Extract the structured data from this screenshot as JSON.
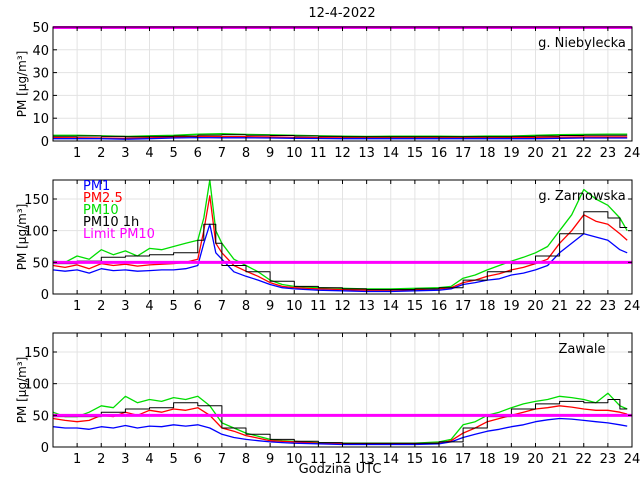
{
  "figure": {
    "title": "12-4-2022",
    "xlabel": "Godzina UTC"
  },
  "colors": {
    "pm1": "#0000ff",
    "pm25": "#ff0000",
    "pm10": "#00dd00",
    "pm10_1h": "#000000",
    "limit": "#ff00ff"
  },
  "chart_data": [
    {
      "type": "line",
      "station": "g. Niebylecka",
      "ylabel": "PM [µg/m³]",
      "xlabel": "",
      "xlim": [
        0,
        24
      ],
      "ylim": [
        0,
        50
      ],
      "xticks": [
        1,
        2,
        3,
        4,
        5,
        6,
        7,
        8,
        9,
        10,
        11,
        12,
        13,
        14,
        15,
        16,
        17,
        18,
        19,
        20,
        21,
        22,
        23,
        24
      ],
      "yticks": [
        0,
        10,
        20,
        30,
        40,
        50
      ],
      "grid": true,
      "x": [
        0,
        1,
        2,
        3,
        4,
        5,
        6,
        7,
        8,
        9,
        10,
        11,
        12,
        13,
        14,
        15,
        16,
        17,
        18,
        19,
        20,
        21,
        22,
        23,
        23.8
      ],
      "series": [
        {
          "name": "PM1",
          "key": "pm1",
          "values": [
            1,
            1,
            1,
            0.8,
            1,
            1.3,
            1.5,
            1.4,
            1.4,
            1.3,
            1.2,
            1.1,
            1,
            1,
            1,
            1,
            1,
            1,
            1,
            1,
            1,
            1.2,
            1.3,
            1.3,
            1.3
          ]
        },
        {
          "name": "PM2.5",
          "key": "pm25",
          "values": [
            1.5,
            1.4,
            1.3,
            1.2,
            1.4,
            1.7,
            2,
            1.9,
            1.9,
            1.8,
            1.6,
            1.5,
            1.4,
            1.4,
            1.4,
            1.4,
            1.4,
            1.4,
            1.4,
            1.5,
            1.6,
            1.7,
            1.8,
            1.8,
            1.8
          ]
        },
        {
          "name": "PM10",
          "key": "pm10",
          "values": [
            2.5,
            2.5,
            2.3,
            2,
            2.3,
            2.5,
            3,
            3.2,
            2.9,
            2.7,
            2.5,
            2.3,
            2.1,
            2,
            2.1,
            2.1,
            2.1,
            2,
            2.2,
            2.2,
            2.5,
            2.8,
            2.9,
            3,
            3
          ]
        },
        {
          "name": "PM10 1h",
          "key": "pm10_1h",
          "values": [
            2.1,
            2.2,
            2,
            1.9,
            2,
            2.2,
            2.6,
            2.7,
            2.5,
            2.4,
            2.2,
            2,
            1.9,
            1.9,
            1.9,
            1.9,
            1.9,
            1.9,
            1.9,
            2,
            2.2,
            2.4,
            2.5,
            2.5,
            2.5
          ]
        }
      ],
      "limit": {
        "name": "Limit PM10",
        "value": 50
      }
    },
    {
      "type": "line",
      "station": "g. Zarnowska",
      "ylabel": "PM [µg/m³]",
      "xlabel": "",
      "xlim": [
        0,
        24
      ],
      "ylim": [
        0,
        180
      ],
      "xticks": [
        1,
        2,
        3,
        4,
        5,
        6,
        7,
        8,
        9,
        10,
        11,
        12,
        13,
        14,
        15,
        16,
        17,
        18,
        19,
        20,
        21,
        22,
        23,
        24
      ],
      "yticks": [
        0,
        50,
        100,
        150
      ],
      "grid": true,
      "legend": "top-left",
      "x": [
        0,
        0.5,
        1,
        1.5,
        2,
        2.5,
        3,
        3.5,
        4,
        4.5,
        5,
        5.5,
        6,
        6.25,
        6.5,
        6.75,
        7,
        7.5,
        8,
        8.5,
        9,
        9.5,
        10,
        11,
        12,
        13,
        14,
        15,
        16,
        16.5,
        17,
        17.5,
        18,
        18.5,
        19,
        19.5,
        20,
        20.5,
        21,
        21.5,
        22,
        22.5,
        23,
        23.5,
        23.8
      ],
      "series": [
        {
          "name": "PM1",
          "key": "pm1",
          "values": [
            38,
            36,
            38,
            33,
            40,
            37,
            38,
            36,
            37,
            38,
            38,
            40,
            45,
            80,
            110,
            65,
            55,
            35,
            28,
            22,
            15,
            10,
            8,
            6,
            5,
            4,
            4,
            5,
            6,
            8,
            15,
            18,
            22,
            24,
            30,
            33,
            38,
            45,
            65,
            80,
            95,
            90,
            85,
            70,
            65
          ]
        },
        {
          "name": "PM2.5",
          "key": "pm25",
          "values": [
            45,
            42,
            46,
            40,
            48,
            45,
            47,
            44,
            46,
            47,
            48,
            50,
            55,
            100,
            155,
            80,
            65,
            45,
            36,
            28,
            18,
            12,
            10,
            8,
            7,
            6,
            6,
            7,
            8,
            10,
            18,
            22,
            28,
            32,
            38,
            42,
            48,
            55,
            80,
            100,
            125,
            115,
            110,
            95,
            85
          ]
        },
        {
          "name": "PM10",
          "key": "pm10",
          "values": [
            52,
            50,
            60,
            55,
            70,
            62,
            68,
            60,
            72,
            70,
            75,
            80,
            85,
            120,
            180,
            100,
            80,
            55,
            45,
            35,
            22,
            15,
            12,
            10,
            9,
            8,
            8,
            9,
            10,
            12,
            25,
            30,
            38,
            45,
            52,
            58,
            65,
            75,
            100,
            125,
            165,
            150,
            140,
            120,
            100
          ]
        },
        {
          "name": "PM10 1h",
          "key": "pm10_1h",
          "values": [
            48,
            48,
            52,
            52,
            58,
            58,
            60,
            60,
            62,
            62,
            65,
            65,
            85,
            110,
            110,
            80,
            45,
            45,
            35,
            35,
            20,
            20,
            12,
            10,
            8,
            7,
            7,
            8,
            10,
            10,
            22,
            22,
            35,
            35,
            48,
            48,
            60,
            60,
            95,
            95,
            130,
            130,
            120,
            105,
            105
          ]
        }
      ],
      "limit": {
        "name": "Limit PM10",
        "value": 50
      }
    },
    {
      "type": "line",
      "station": "Zawale",
      "ylabel": "PM [µg/m³]",
      "xlabel": "Godzina UTC",
      "xlim": [
        0,
        24
      ],
      "ylim": [
        0,
        180
      ],
      "xticks": [
        1,
        2,
        3,
        4,
        5,
        6,
        7,
        8,
        9,
        10,
        11,
        12,
        13,
        14,
        15,
        16,
        17,
        18,
        19,
        20,
        21,
        22,
        23,
        24
      ],
      "yticks": [
        0,
        50,
        100,
        150
      ],
      "grid": true,
      "x": [
        0,
        0.5,
        1,
        1.5,
        2,
        2.5,
        3,
        3.5,
        4,
        4.5,
        5,
        5.5,
        6,
        6.5,
        7,
        7.5,
        8,
        8.5,
        9,
        9.5,
        10,
        11,
        12,
        13,
        14,
        15,
        16,
        16.5,
        17,
        17.5,
        18,
        18.5,
        19,
        19.5,
        20,
        20.5,
        21,
        21.5,
        22,
        22.5,
        23,
        23.5,
        23.8
      ],
      "series": [
        {
          "name": "PM1",
          "key": "pm1",
          "values": [
            32,
            30,
            30,
            28,
            32,
            30,
            34,
            30,
            33,
            32,
            35,
            33,
            35,
            30,
            20,
            15,
            12,
            10,
            8,
            7,
            6,
            5,
            4,
            4,
            4,
            4,
            5,
            8,
            15,
            20,
            25,
            28,
            32,
            35,
            40,
            43,
            45,
            44,
            42,
            40,
            38,
            35,
            33
          ]
        },
        {
          "name": "PM2.5",
          "key": "pm25",
          "values": [
            45,
            42,
            40,
            42,
            50,
            48,
            55,
            50,
            58,
            55,
            60,
            58,
            62,
            50,
            30,
            25,
            18,
            14,
            10,
            9,
            8,
            6,
            5,
            5,
            5,
            5,
            6,
            10,
            22,
            30,
            40,
            45,
            50,
            55,
            60,
            62,
            65,
            63,
            60,
            58,
            58,
            55,
            52
          ]
        },
        {
          "name": "PM10",
          "key": "pm10",
          "values": [
            55,
            48,
            48,
            55,
            65,
            62,
            80,
            70,
            75,
            72,
            78,
            75,
            80,
            65,
            38,
            30,
            22,
            17,
            12,
            10,
            9,
            7,
            6,
            6,
            6,
            6,
            8,
            12,
            35,
            40,
            50,
            55,
            62,
            68,
            72,
            75,
            80,
            78,
            75,
            70,
            85,
            65,
            60
          ]
        },
        {
          "name": "PM10 1h",
          "key": "pm10_1h",
          "values": [
            48,
            48,
            48,
            48,
            55,
            55,
            60,
            60,
            62,
            62,
            70,
            70,
            65,
            65,
            30,
            30,
            20,
            20,
            12,
            12,
            9,
            7,
            6,
            6,
            6,
            6,
            8,
            8,
            30,
            30,
            48,
            48,
            60,
            60,
            68,
            68,
            72,
            72,
            70,
            70,
            75,
            60,
            60
          ]
        }
      ],
      "limit": {
        "name": "Limit PM10",
        "value": 50
      }
    }
  ]
}
